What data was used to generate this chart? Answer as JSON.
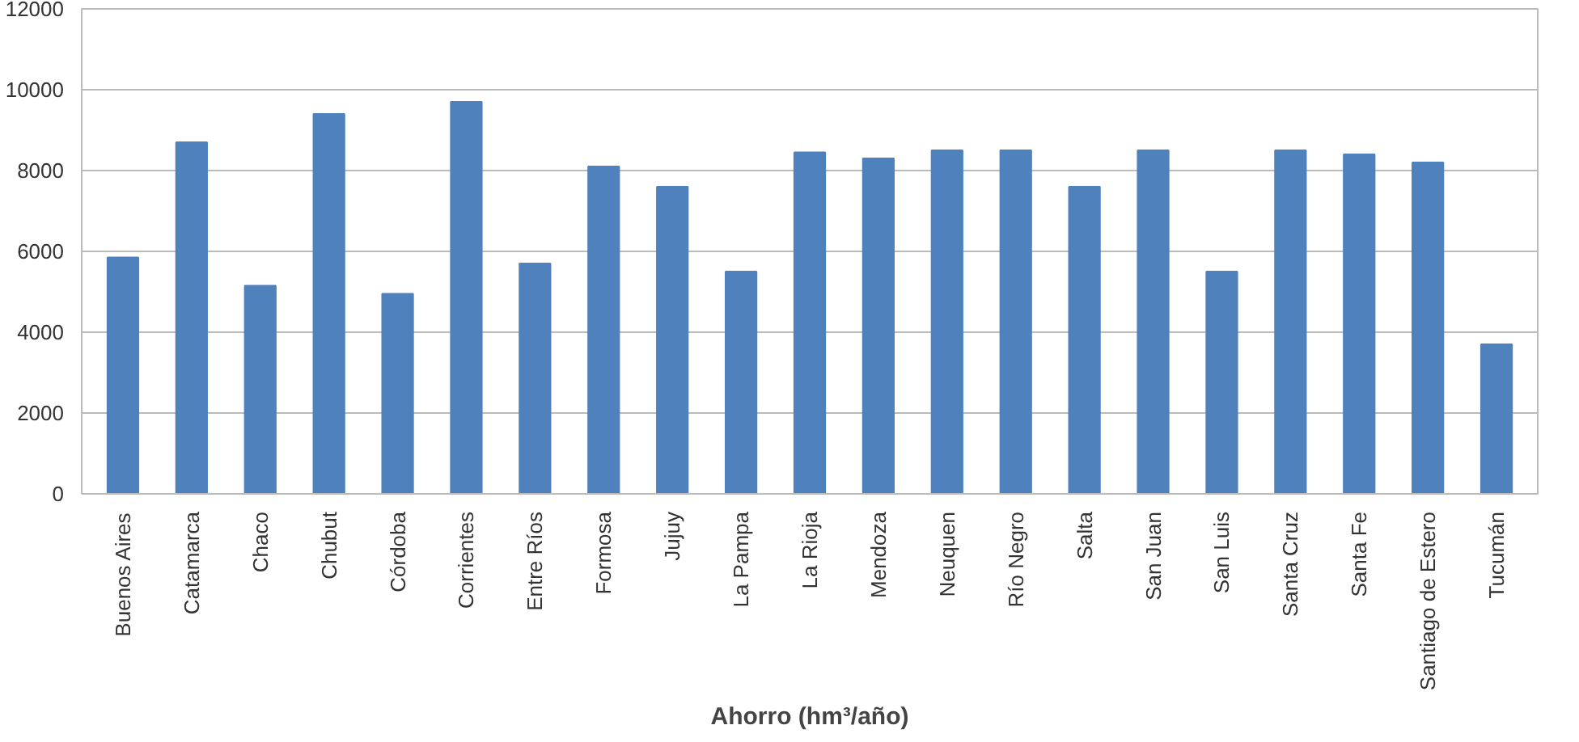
{
  "chart_data": {
    "type": "bar",
    "xlabel": "Ahorro (hm³/año)",
    "categories": [
      "Buenos Aires",
      "Catamarca",
      "Chaco",
      "Chubut",
      "Córdoba",
      "Corrientes",
      "Entre Ríos",
      "Formosa",
      "Jujuy",
      "La Pampa",
      "La Rioja",
      "Mendoza",
      "Neuquen",
      "Río Negro",
      "Salta",
      "San Juan",
      "San Luis",
      "Santa Cruz",
      "Santa Fe",
      "Santiago de Estero",
      "Tucumán"
    ],
    "values": [
      5850,
      8700,
      5150,
      9400,
      4950,
      9700,
      5700,
      8100,
      7600,
      5500,
      8450,
      8300,
      8500,
      8500,
      7600,
      8500,
      5500,
      8500,
      8400,
      8200,
      3700
    ],
    "color": "#4f81bd",
    "ylim": [
      0,
      12000
    ],
    "yticks": [
      0,
      2000,
      4000,
      6000,
      8000,
      10000,
      12000
    ],
    "grid": "y"
  }
}
